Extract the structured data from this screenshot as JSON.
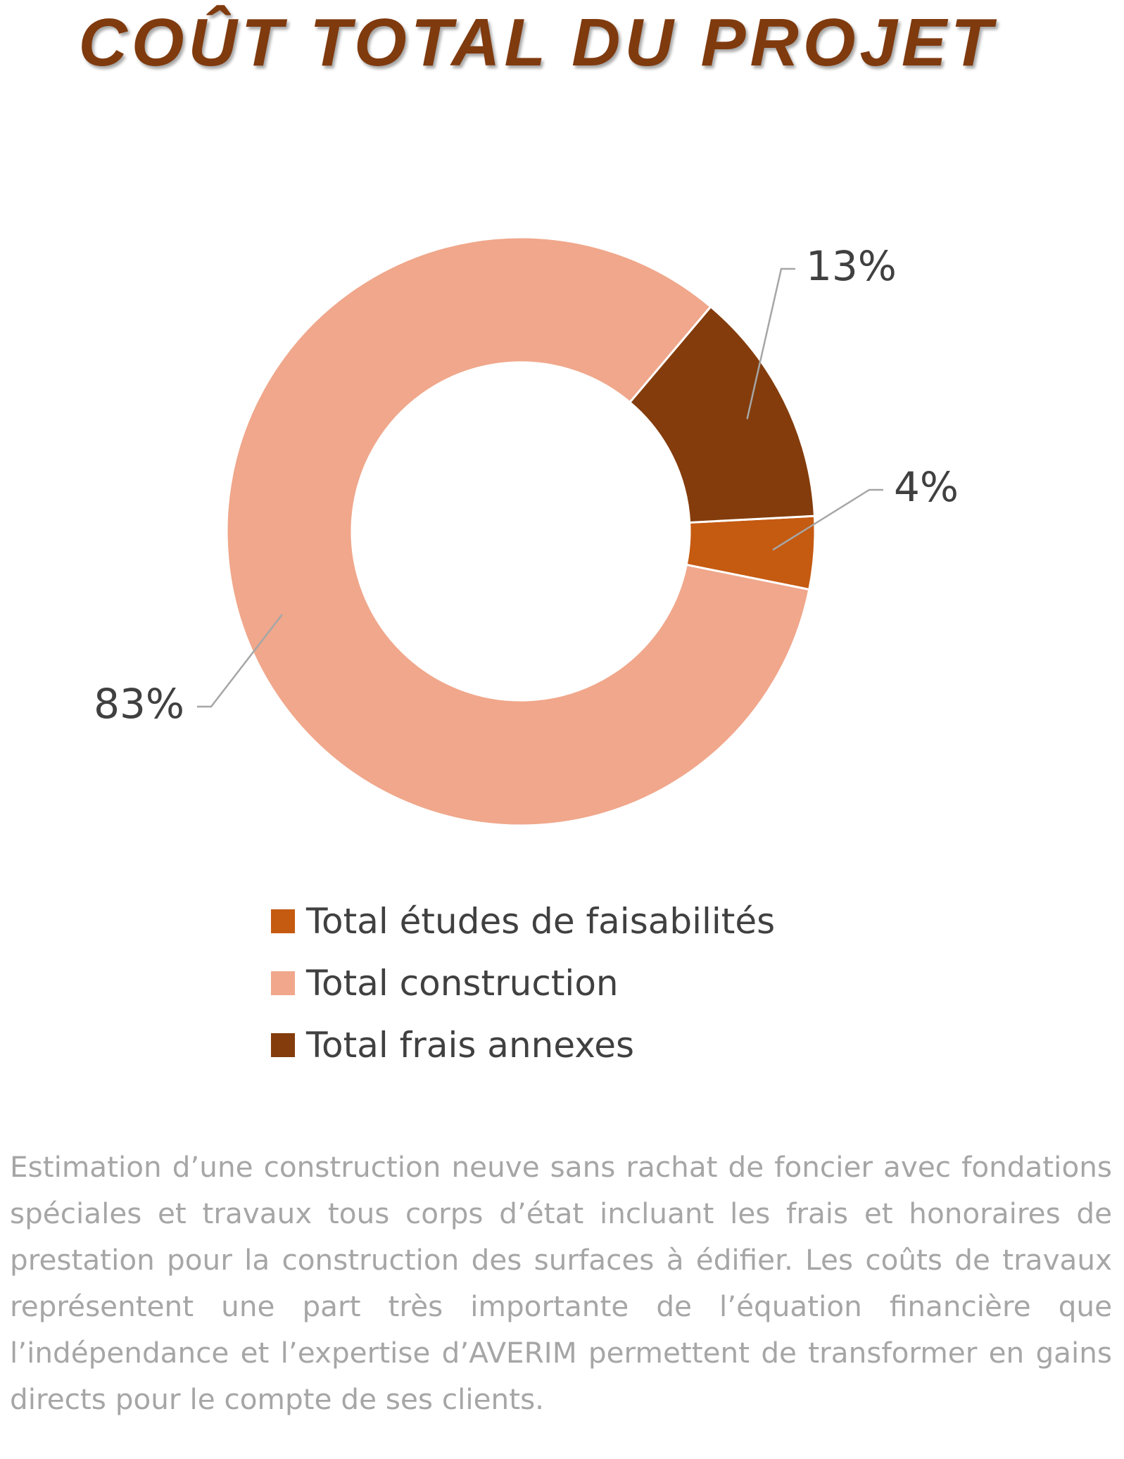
{
  "title": "COÛT TOTAL DU PROJET",
  "chart_data": {
    "type": "donut",
    "series": [
      {
        "name": "Total études de faisabilités",
        "value": 4,
        "label": "4%",
        "color": "#C55A11"
      },
      {
        "name": "Total construction",
        "value": 83,
        "label": "83%",
        "color": "#F0A78B"
      },
      {
        "name": "Total frais annexes",
        "value": 13,
        "label": "13%",
        "color": "#843C0C"
      }
    ],
    "legend_position": "bottom",
    "data_labels": "outside-with-leader-lines"
  },
  "description": "Estimation d’une construction neuve sans rachat de foncier avec fondations spéciales et travaux tous corps d’état incluant les frais et honoraires de prestation pour la construction des surfaces à édifier. Les coûts de travaux représentent une part très importante de l’équation financière que l’indépendance et l’expertise d’AVERIM permettent de transformer en gains directs pour le compte de ses clients."
}
